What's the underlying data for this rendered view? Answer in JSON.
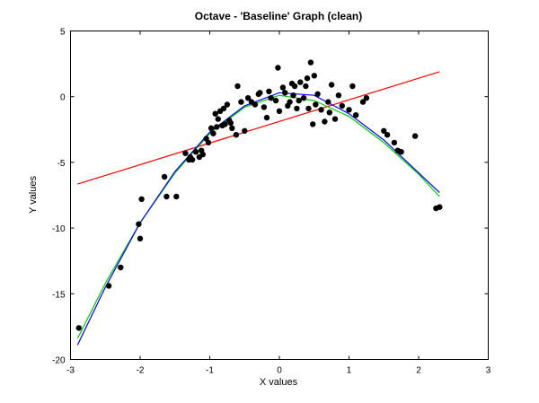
{
  "chart_data": {
    "type": "scatter",
    "title": "Octave - 'Baseline' Graph (clean)",
    "xlabel": "X values",
    "ylabel": "Y values",
    "xlim": [
      -3,
      3
    ],
    "ylim": [
      -20,
      5
    ],
    "xticks": [
      -3,
      -2,
      -1,
      0,
      1,
      2,
      3
    ],
    "yticks": [
      -20,
      -15,
      -10,
      -5,
      0,
      5
    ],
    "grid": false,
    "legend": "none",
    "colors": {
      "points": "#000000",
      "linear_fit": "#ff0000",
      "quadratic_fit": "#00cc00",
      "cubic_fit": "#0000ff"
    },
    "series": [
      {
        "kind": "points",
        "color": "#000000",
        "x": [
          -2.88,
          -2.45,
          -2.28,
          -2.02,
          -2.0,
          -1.98,
          -1.65,
          -1.62,
          -1.48,
          -1.35,
          -1.3,
          -1.28,
          -1.25,
          -1.2,
          -1.15,
          -1.12,
          -1.1,
          -1.05,
          -1.02,
          -0.98,
          -0.95,
          -0.92,
          -0.9,
          -0.88,
          -0.85,
          -0.82,
          -0.8,
          -0.78,
          -0.75,
          -0.72,
          -0.7,
          -0.68,
          -0.62,
          -0.6,
          -0.55,
          -0.5,
          -0.45,
          -0.4,
          -0.35,
          -0.3,
          -0.28,
          -0.22,
          -0.18,
          -0.15,
          -0.12,
          -0.05,
          -0.02,
          0.0,
          0.05,
          0.08,
          0.12,
          0.15,
          0.18,
          0.2,
          0.22,
          0.25,
          0.28,
          0.3,
          0.35,
          0.38,
          0.4,
          0.42,
          0.45,
          0.48,
          0.5,
          0.52,
          0.55,
          0.6,
          0.65,
          0.7,
          0.72,
          0.75,
          0.8,
          0.85,
          0.9,
          1.0,
          1.05,
          1.1,
          1.2,
          1.25,
          1.5,
          1.55,
          1.65,
          1.7,
          1.75,
          1.95,
          2.25,
          2.3
        ],
        "y": [
          -17.6,
          -14.4,
          -13.0,
          -9.7,
          -10.8,
          -7.8,
          -6.1,
          -7.6,
          -7.6,
          -4.3,
          -4.8,
          -4.6,
          -4.8,
          -4.2,
          -4.6,
          -4.1,
          -4.4,
          -3.2,
          -3.5,
          -2.4,
          -2.8,
          -1.3,
          -2.3,
          -1.7,
          -1.1,
          -2.2,
          -0.9,
          -2.1,
          -0.6,
          -1.8,
          -2.0,
          -2.4,
          -2.9,
          0.8,
          -0.4,
          -2.6,
          -0.1,
          -0.4,
          -0.6,
          0.2,
          0.3,
          -0.8,
          -1.6,
          0.4,
          -0.1,
          -0.3,
          2.2,
          -1.1,
          0.7,
          0.3,
          -0.7,
          -0.4,
          1.0,
          0.1,
          0.8,
          -0.9,
          -0.3,
          1.1,
          -0.1,
          0.8,
          1.4,
          -0.9,
          2.6,
          -2.1,
          1.6,
          -0.6,
          0.2,
          -1.0,
          -1.9,
          -0.4,
          -1.2,
          0.9,
          -1.7,
          0.1,
          -0.7,
          -1.0,
          0.8,
          -1.4,
          -0.4,
          -0.1,
          -2.6,
          -2.9,
          -3.5,
          -4.1,
          -4.2,
          -3.0,
          -8.5,
          -8.4
        ]
      },
      {
        "kind": "line",
        "color": "#ff0000",
        "x": [
          -2.9,
          2.3
        ],
        "y": [
          -6.65,
          1.9
        ]
      },
      {
        "kind": "line",
        "color": "#00cc00",
        "x": [
          -2.9,
          -2.5,
          -2.0,
          -1.5,
          -1.0,
          -0.5,
          0.0,
          0.5,
          1.0,
          1.5,
          2.0,
          2.3
        ],
        "y": [
          -18.4,
          -14.2,
          -9.6,
          -5.8,
          -2.8,
          -0.8,
          0.1,
          -0.3,
          -1.5,
          -3.5,
          -5.9,
          -7.6
        ]
      },
      {
        "kind": "line",
        "color": "#0000ff",
        "x": [
          -2.9,
          -2.5,
          -2.0,
          -1.5,
          -1.0,
          -0.5,
          0.0,
          0.5,
          1.0,
          1.5,
          2.0,
          2.3
        ],
        "y": [
          -18.9,
          -14.5,
          -9.6,
          -5.7,
          -2.7,
          -0.7,
          0.3,
          0.1,
          -1.3,
          -3.3,
          -5.8,
          -7.3
        ]
      }
    ]
  }
}
